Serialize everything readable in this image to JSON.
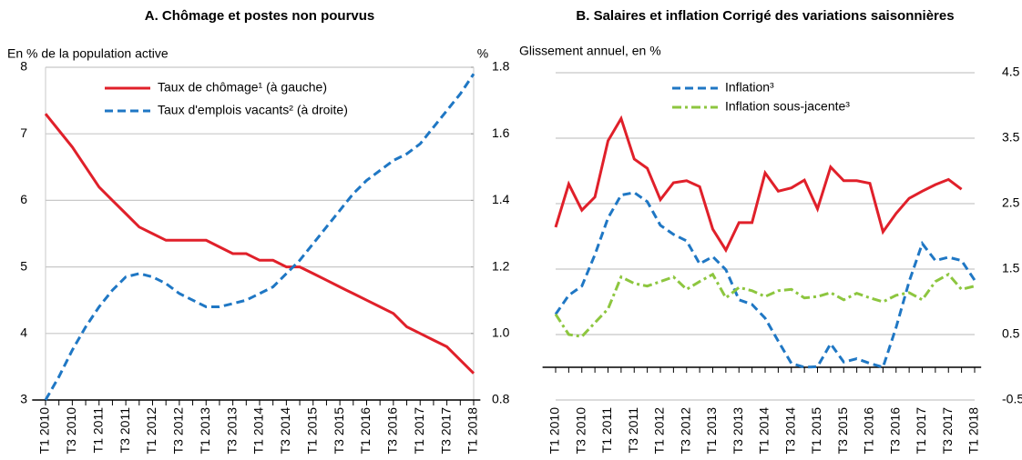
{
  "chart_data": [
    {
      "type": "line",
      "title": "A. Chômage et postes non pourvus",
      "ylabel": "En % de la population active",
      "y2label": "%",
      "categories": [
        "T1 2010",
        null,
        "T3 2010",
        null,
        "T1 2011",
        null,
        "T3 2011",
        null,
        "T1 2012",
        null,
        "T3 2012",
        null,
        "T1 2013",
        null,
        "T3 2013",
        null,
        "T1 2014",
        null,
        "T3 2014",
        null,
        "T1 2015",
        null,
        "T3 2015",
        null,
        "T1 2016",
        null,
        "T3 2016",
        null,
        "T1 2017",
        null,
        "T3 2017",
        null,
        "T1 2018"
      ],
      "ylim": [
        3,
        8
      ],
      "yticks": [
        3,
        4,
        5,
        6,
        7,
        8
      ],
      "y2lim": [
        0.8,
        1.8
      ],
      "y2ticks": [
        0.8,
        {
          "value": 1,
          "label": "1.0"
        },
        1.2,
        1.4,
        1.6,
        1.8
      ],
      "grid": true,
      "series": [
        {
          "name": "Taux de chômage¹ (à gauche)",
          "color": "#e0202a",
          "line_style": "solid",
          "values": [
            7.3,
            7.05,
            6.8,
            6.5,
            6.2,
            6.0,
            5.8,
            5.6,
            5.5,
            5.4,
            5.4,
            5.4,
            5.4,
            5.3,
            5.2,
            5.2,
            5.1,
            5.1,
            5.0,
            5.0,
            4.9,
            4.8,
            4.7,
            4.6,
            4.5,
            4.4,
            4.3,
            4.1,
            4.0,
            3.9,
            3.8,
            3.6,
            3.4
          ]
        },
        {
          "name": "Taux d'emplois vacants² (à droite)",
          "color": "#1f77c4",
          "line_style": "dashed",
          "axis": "y2",
          "values": [
            0.8,
            0.87,
            0.95,
            1.02,
            1.08,
            1.13,
            1.17,
            1.18,
            1.17,
            1.15,
            1.12,
            1.1,
            1.08,
            1.08,
            1.09,
            1.1,
            1.12,
            1.14,
            1.18,
            1.22,
            1.27,
            1.32,
            1.37,
            1.42,
            1.46,
            1.49,
            1.52,
            1.54,
            1.57,
            1.62,
            1.67,
            1.72,
            1.78
          ]
        }
      ]
    },
    {
      "type": "line",
      "title": "B. Salaires et inflation Corrigé des variations saisonnières",
      "ylabel": "Glissement annuel, en %",
      "yaxis_position": "right",
      "zero_line": true,
      "categories": [
        "T1 2010",
        null,
        "T3 2010",
        null,
        "T1 2011",
        null,
        "T3 2011",
        null,
        "T1 2012",
        null,
        "T3 2012",
        null,
        "T1 2013",
        null,
        "T3 2013",
        null,
        "T1 2014",
        null,
        "T3 2014",
        null,
        "T1 2015",
        null,
        "T3 2015",
        null,
        "T1 2016",
        null,
        "T3 2016",
        null,
        "T1 2017",
        null,
        "T3 2017",
        null,
        "T1 2018"
      ],
      "ylim": [
        -0.5,
        4.5
      ],
      "yticks": [
        -0.5,
        0.5,
        1.5,
        2.5,
        3.5,
        4.5
      ],
      "grid": true,
      "series": [
        {
          "color": "#e0202a",
          "line_style": "solid",
          "values": [
            2.14,
            2.8,
            2.4,
            2.6,
            3.46,
            3.8,
            3.18,
            3.04,
            2.56,
            2.82,
            2.85,
            2.76,
            2.11,
            1.79,
            2.21,
            2.21,
            2.97,
            2.69,
            2.74,
            2.86,
            2.42,
            3.06,
            2.85,
            2.85,
            2.81,
            2.07,
            2.35,
            2.58,
            2.69,
            2.79,
            2.87,
            2.72,
            null
          ]
        },
        {
          "name": "Inflation³",
          "color": "#1f77c4",
          "line_style": "dashed",
          "values": [
            0.81,
            1.1,
            1.24,
            1.72,
            2.28,
            2.63,
            2.67,
            2.53,
            2.17,
            2.03,
            1.93,
            1.58,
            1.69,
            1.49,
            1.03,
            0.96,
            0.75,
            0.4,
            0.06,
            0,
            0.01,
            0.36,
            0.08,
            0.13,
            0.06,
            0,
            0.61,
            1.31,
            1.89,
            1.63,
            1.68,
            1.63,
            1.33
          ]
        },
        {
          "name": "Inflation sous-jacente³",
          "color": "#8dc63f",
          "line_style": "dashdot",
          "values": [
            0.81,
            0.5,
            0.47,
            0.68,
            0.89,
            1.38,
            1.28,
            1.24,
            1.31,
            1.38,
            1.19,
            1.31,
            1.42,
            1.06,
            1.22,
            1.17,
            1.08,
            1.17,
            1.19,
            1.06,
            1.08,
            1.14,
            1.03,
            1.13,
            1.06,
            1.0,
            1.1,
            1.14,
            1.03,
            1.31,
            1.42,
            1.19,
            1.24
          ]
        }
      ]
    }
  ]
}
